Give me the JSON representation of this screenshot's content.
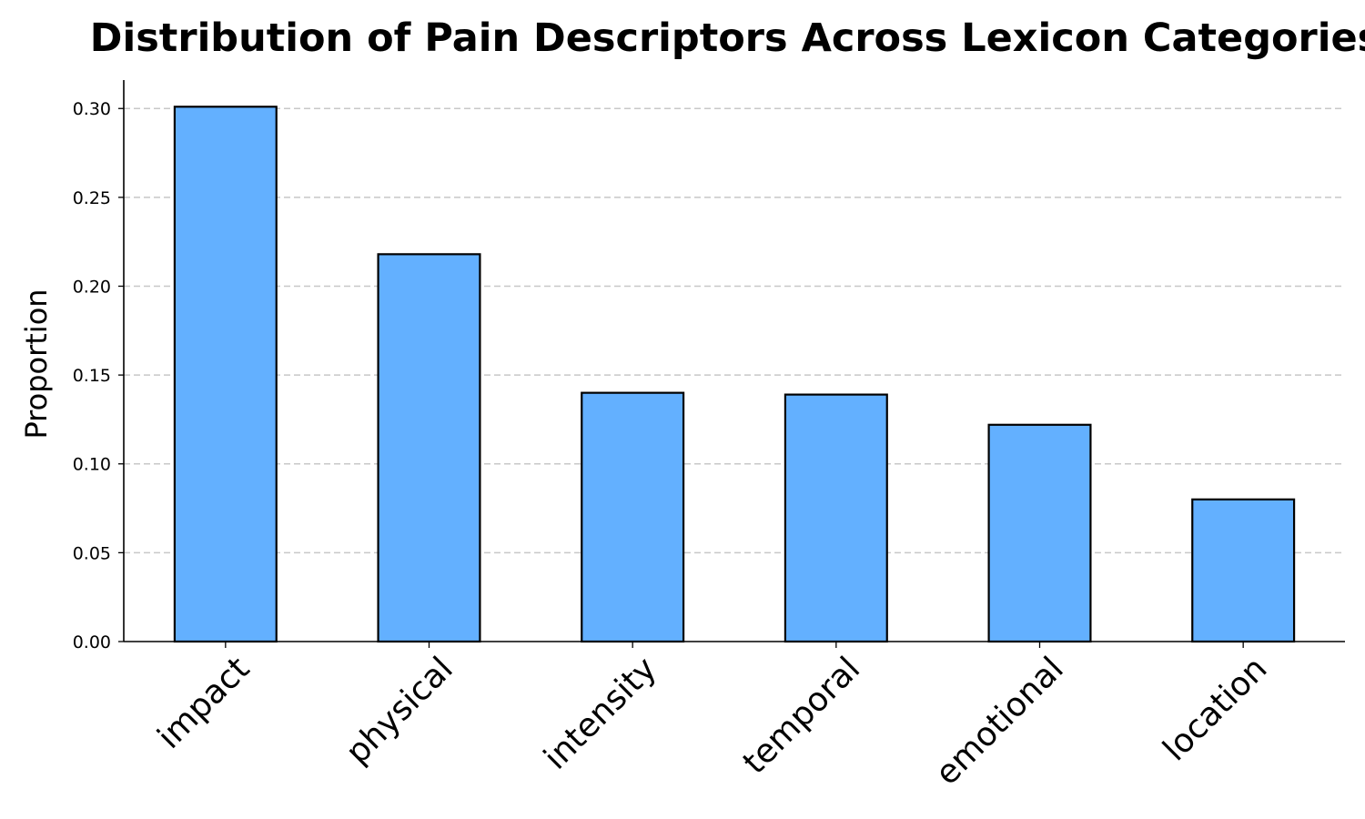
{
  "chart_data": {
    "type": "bar",
    "title": "Distribution of Pain Descriptors Across Lexicon Categories",
    "xlabel": "",
    "ylabel": "Proportion",
    "categories": [
      "impact",
      "physical",
      "intensity",
      "temporal",
      "emotional",
      "location"
    ],
    "values": [
      0.301,
      0.218,
      0.14,
      0.139,
      0.122,
      0.08
    ],
    "ylim": [
      0,
      0.316
    ],
    "yticks": [
      0.0,
      0.05,
      0.1,
      0.15,
      0.2,
      0.25,
      0.3
    ],
    "ytick_labels": [
      "0.00",
      "0.05",
      "0.10",
      "0.15",
      "0.20",
      "0.25",
      "0.30"
    ],
    "grid": "y-dashed",
    "legend": "none",
    "bar_color": "#63b0ff",
    "edge_color": "#000000",
    "grid_color": "#c8c8c8"
  }
}
